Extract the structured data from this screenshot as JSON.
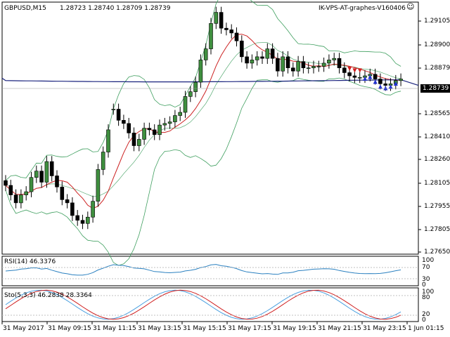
{
  "header": {
    "symbol_timeframe": "GBPUSD,M15",
    "ohlc": "1.28723 1.28740 1.28709 1.28739",
    "indicator_name": "IK-VPS-AT-graphes-V160406",
    "indicator_icon": "smiley-icon"
  },
  "price_axis": [
    "1.29105",
    "1.28900",
    "1.28879",
    "1.28739",
    "1.28565",
    "1.28410",
    "1.28260",
    "1.28105",
    "1.27955",
    "1.27805",
    "1.27650"
  ],
  "current_price": "1.28739",
  "rsi_panel": {
    "label": "RSI(14) 46.3376",
    "levels": [
      "100",
      "70",
      "30",
      "0"
    ]
  },
  "sto_panel": {
    "label": "Sto(5,3,3) 46.2838 28.3364",
    "levels": [
      "100",
      "80",
      "20",
      "0"
    ]
  },
  "time_axis": [
    "31 May 2017",
    "31 May 09:15",
    "31 May 11:15",
    "31 May 13:15",
    "31 May 15:15",
    "31 May 17:15",
    "31 May 19:15",
    "31 May 21:15",
    "31 May 23:15",
    "1 Jun 01:15"
  ],
  "colors": {
    "bull": "#3f8f3f",
    "bear": "#b03030",
    "ma_fast": "#cc2222",
    "ma_slow": "#1a237e",
    "bands": "#3f9f5f",
    "rsi": "#2a80c0",
    "sto_main": "#4aa0e0",
    "sto_signal": "#d02020"
  },
  "chart_data": {
    "type": "candlestick",
    "close": [
      1.2807,
      1.2801,
      1.2796,
      1.2801,
      1.2803,
      1.2812,
      1.2816,
      1.2809,
      1.2822,
      1.2813,
      1.2806,
      1.2798,
      1.2796,
      1.2788,
      1.2785,
      1.2783,
      1.2787,
      1.2797,
      1.2817,
      1.2828,
      1.2842,
      1.2855,
      1.2848,
      1.2846,
      1.284,
      1.2832,
      1.2836,
      1.2843,
      1.2842,
      1.2839,
      1.2845,
      1.2846,
      1.2847,
      1.2851,
      1.2853,
      1.2863,
      1.2866,
      1.2872,
      1.2886,
      1.2893,
      1.2909,
      1.2916,
      1.2906,
      1.2905,
      1.2903,
      1.2898,
      1.2888,
      1.2884,
      1.2886,
      1.2888,
      1.2887,
      1.2893,
      1.2887,
      1.2879,
      1.2888,
      1.2881,
      1.2879,
      1.2885,
      1.2881,
      1.2881,
      1.2882,
      1.2882,
      1.2884,
      1.2886,
      1.2887,
      1.2881,
      1.2878,
      1.2876,
      1.2875,
      1.2875,
      1.2876,
      1.2877,
      1.2874,
      1.2871,
      1.287,
      1.2871,
      1.2873,
      1.2874
    ],
    "open": [
      1.281,
      1.2807,
      1.2801,
      1.2796,
      1.2801,
      1.2803,
      1.2812,
      1.2816,
      1.2809,
      1.2822,
      1.2813,
      1.2806,
      1.2798,
      1.2796,
      1.2788,
      1.2785,
      1.2783,
      1.2787,
      1.2797,
      1.2817,
      1.2828,
      1.2855,
      1.2855,
      1.2848,
      1.2846,
      1.284,
      1.2832,
      1.2836,
      1.2843,
      1.2842,
      1.2839,
      1.2845,
      1.2846,
      1.2847,
      1.2851,
      1.2853,
      1.2863,
      1.2866,
      1.2872,
      1.2886,
      1.2893,
      1.2909,
      1.2916,
      1.2906,
      1.2905,
      1.2903,
      1.2898,
      1.2888,
      1.2884,
      1.2886,
      1.2888,
      1.2887,
      1.2893,
      1.2887,
      1.2879,
      1.2888,
      1.2881,
      1.2879,
      1.2885,
      1.2881,
      1.2881,
      1.2882,
      1.2882,
      1.2884,
      1.2886,
      1.2887,
      1.2881,
      1.2878,
      1.2876,
      1.2875,
      1.2875,
      1.2876,
      1.2877,
      1.2874,
      1.2871,
      1.287,
      1.2871,
      1.2873
    ]
  }
}
